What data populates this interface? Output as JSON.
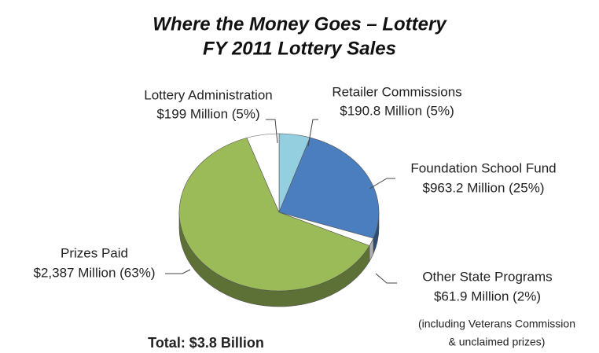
{
  "chart_data": {
    "type": "pie",
    "title": "Where the Money Goes – Lottery",
    "subtitle": "FY 2011 Lottery Sales",
    "categories": [
      "Retailer Commissions",
      "Foundation School Fund",
      "Other State Programs",
      "Prizes Paid",
      "Lottery Administration"
    ],
    "values": [
      190.8,
      963.2,
      61.9,
      2387,
      199
    ],
    "value_labels": [
      "$190.8 Million (5%)",
      "$963.2 Million (25%)",
      "$61.9 Million (2%)",
      "$2,387 Million (63%)",
      "$199 Million (5%)"
    ],
    "colors": [
      "#93cfdf",
      "#4a7ebf",
      "#ffffff",
      "#9bbb59",
      "#ffffff"
    ],
    "annotations": [
      "(including Veterans Commission",
      "& unclaimed prizes)",
      "Total:  $3.8 Billion"
    ]
  }
}
